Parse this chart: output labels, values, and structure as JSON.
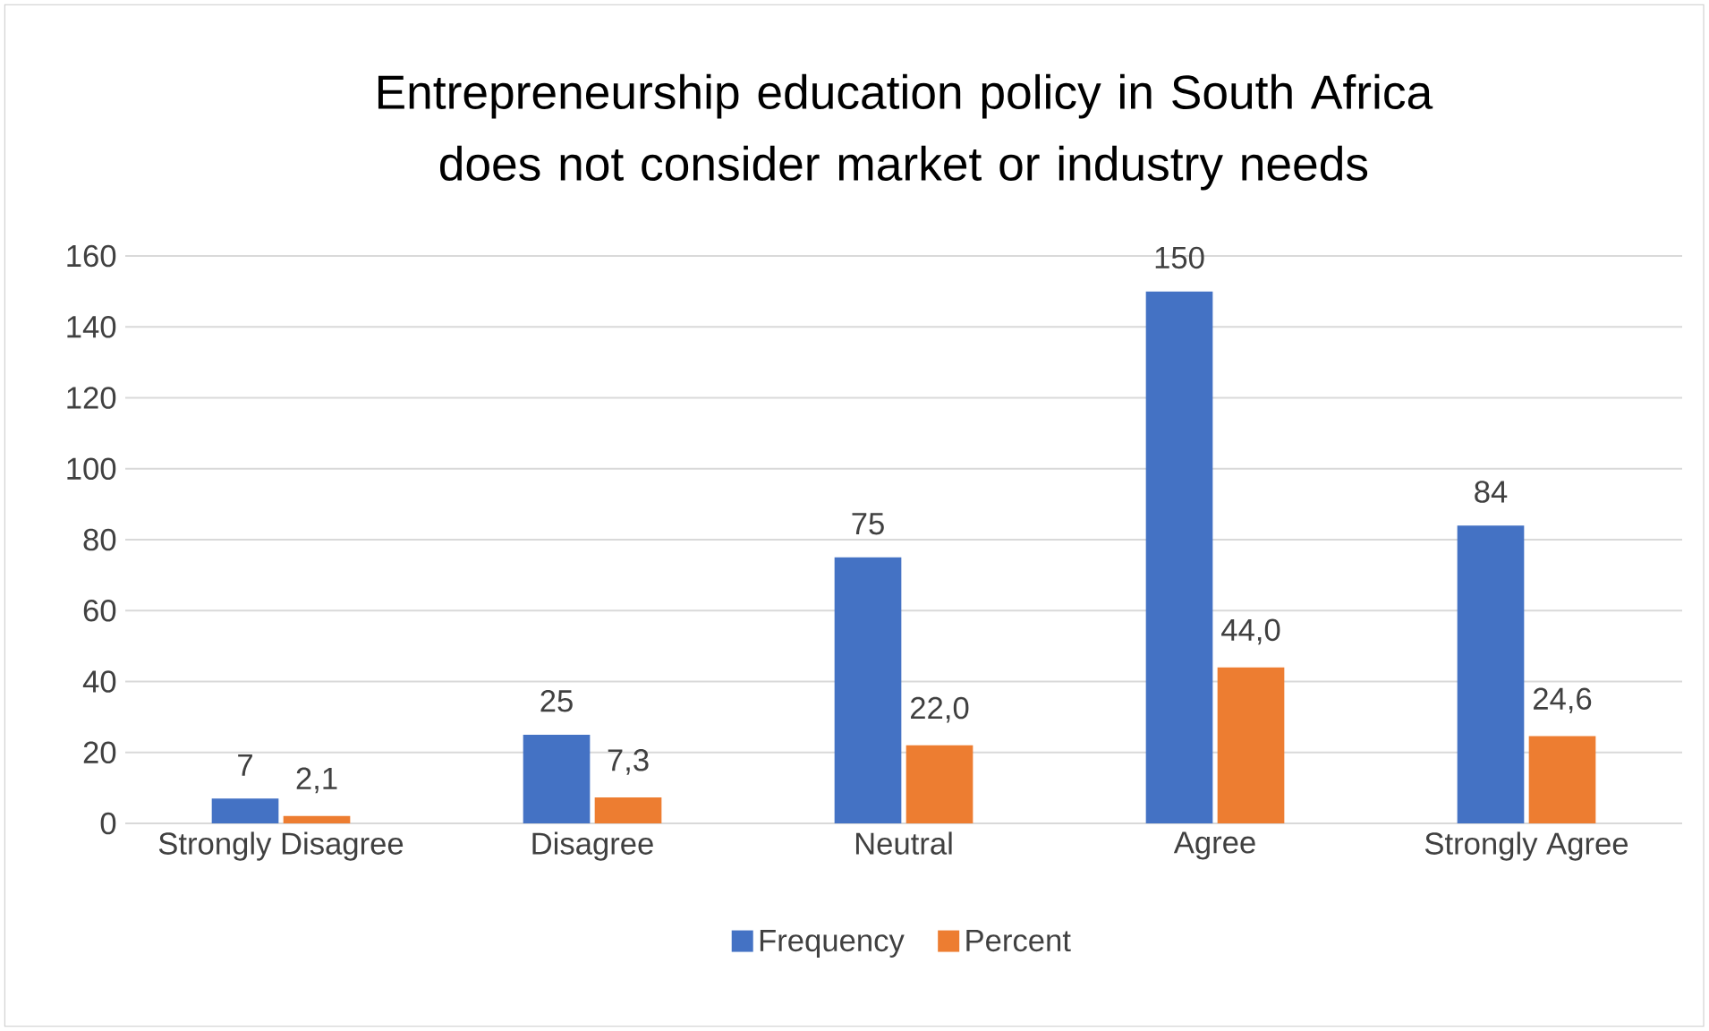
{
  "chart_data": {
    "type": "bar",
    "title": "Entrepreneurship education policy in South Africa does not consider market or industry needs",
    "categories": [
      "Strongly Disagree",
      "Disagree",
      "Neutral",
      "Agree",
      "Strongly Agree"
    ],
    "series": [
      {
        "name": "Frequency",
        "color": "#4472c4",
        "values": [
          7,
          25,
          75,
          150,
          84
        ],
        "value_labels": [
          "7",
          "25",
          "75",
          "150",
          "84"
        ]
      },
      {
        "name": "Percent",
        "color": "#ed7d31",
        "values": [
          2.1,
          7.3,
          22.0,
          44.0,
          24.6
        ],
        "value_labels": [
          "2,1",
          "7,3",
          "22,0",
          "44,0",
          "24,6"
        ]
      }
    ],
    "ylim": [
      0,
      160
    ],
    "yticks": [
      0,
      20,
      40,
      60,
      80,
      100,
      120,
      140,
      160
    ],
    "grid": "y",
    "legend": "bottom"
  }
}
